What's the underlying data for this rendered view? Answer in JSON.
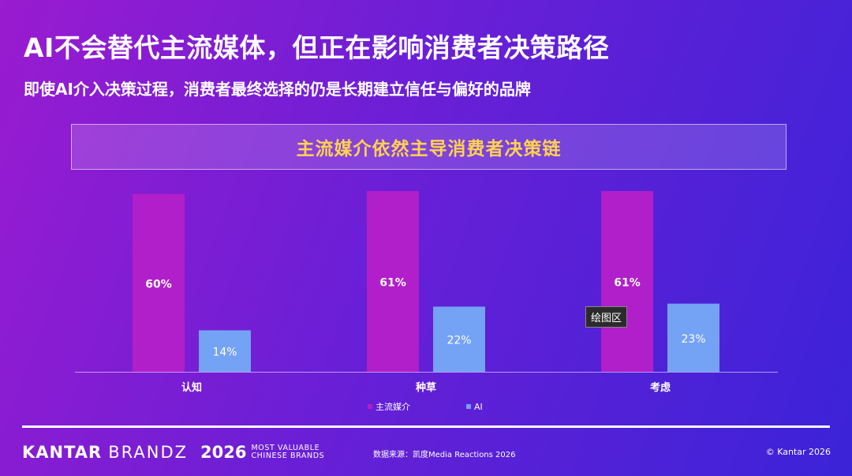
{
  "header": {
    "title": "AI不会替代主流媒体，但正在影响消费者决策路径",
    "subtitle": "即使AI介入决策过程，消费者最终选择的仍是长期建立信任与偏好的品牌"
  },
  "banner": {
    "text": "主流媒介依然主导消费者决策链"
  },
  "tooltip": {
    "text": "绘图区"
  },
  "chart_data": {
    "type": "bar",
    "categories": [
      "认知",
      "种草",
      "考虑"
    ],
    "series": [
      {
        "name": "主流媒介",
        "values": [
          60,
          61,
          61
        ],
        "labels": [
          "60%",
          "61%",
          "61%"
        ],
        "color": "#b01fc9"
      },
      {
        "name": "AI",
        "values": [
          14,
          22,
          23
        ],
        "labels": [
          "14%",
          "22%",
          "23%"
        ],
        "color": "#74a2f5"
      }
    ],
    "ylim": [
      0,
      61
    ],
    "value_suffix": "%",
    "legend_position": "bottom-center"
  },
  "footer": {
    "brand_kantar": "KANTAR",
    "brand_brandz": "BRANDZ",
    "year": "2026",
    "line1": "MOST VALUABLE",
    "line2": "CHINESE BRANDS",
    "source": "数据来源：凯度Media Reactions 2026",
    "copyright": "© Kantar 2026"
  }
}
